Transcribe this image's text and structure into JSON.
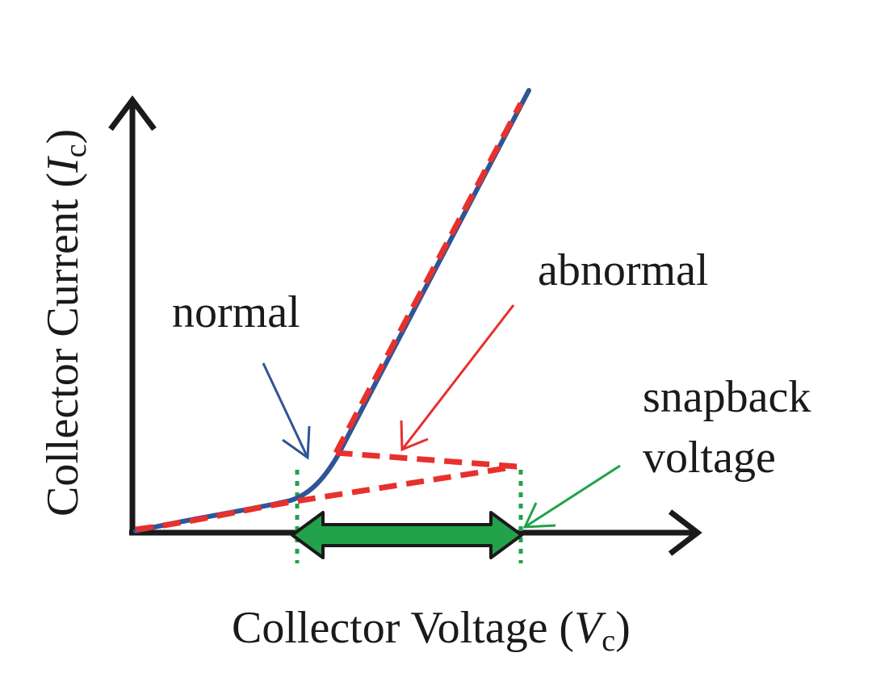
{
  "labels": {
    "x_axis": "Collector Voltage (",
    "x_axis_var": "V",
    "x_axis_sub": "c",
    "x_axis_close": ")",
    "y_axis": "Collector Current (",
    "y_axis_var": "I",
    "y_axis_sub": "c",
    "y_axis_close": ")",
    "normal": "normal",
    "abnormal": "abnormal",
    "snapback_line1": "snapback",
    "snapback_line2": "voltage"
  },
  "colors": {
    "axis": "#1a1a1a",
    "normal_curve": "#2f5597",
    "abnormal_curve": "#e8302c",
    "snapback": "#22a24a",
    "text": "#1a1a1a"
  }
}
